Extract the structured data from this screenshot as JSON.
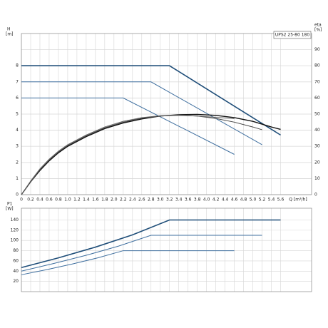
{
  "chart_data": [
    {
      "type": "line",
      "label": "UPS2 25-80 180",
      "ylabel": "H",
      "yunit": "[m]",
      "y2label": "eta",
      "y2unit": "[%]",
      "xlabel": "Q [m³/h]",
      "xlim": [
        0,
        6.27
      ],
      "ylim": [
        0,
        10
      ],
      "y2lim": [
        0,
        100
      ],
      "grid": true,
      "xticks": [
        0,
        0.2,
        0.4,
        0.6,
        0.8,
        {
          "value": 1,
          "label": "1.0"
        },
        1.2,
        1.4,
        1.6,
        1.8,
        {
          "value": 2,
          "label": "2.0"
        },
        2.2,
        2.4,
        2.6,
        2.8,
        {
          "value": 3,
          "label": "3.0"
        },
        3.2,
        3.4,
        3.6,
        3.8,
        {
          "value": 4,
          "label": "4.0"
        },
        4.2,
        4.4,
        4.6,
        4.8,
        {
          "value": 5,
          "label": "5.0"
        },
        5.2,
        5.4,
        5.6
      ],
      "yticks": [
        0,
        1,
        2,
        3,
        4,
        5,
        6,
        7,
        8
      ],
      "y2ticks": [
        0,
        10,
        20,
        30,
        40,
        50,
        60,
        70,
        80,
        90
      ],
      "series": [
        {
          "color": "#1f4e79",
          "width": 1.6,
          "x": [
            0,
            3.2,
            5.6
          ],
          "values": [
            8,
            8,
            3.7
          ]
        },
        {
          "color": "#3f6f9f",
          "width": 1,
          "x": [
            0,
            2.8,
            5.2
          ],
          "values": [
            7,
            7,
            3.1
          ]
        },
        {
          "color": "#3f6f9f",
          "width": 1,
          "x": [
            0,
            2.2,
            4.6
          ],
          "values": [
            6,
            6,
            2.5
          ]
        },
        {
          "color": "#111111",
          "width": 1.4,
          "axis": "y2",
          "x": [
            0,
            0.2,
            0.4,
            0.6,
            0.8,
            1,
            1.4,
            1.8,
            2.2,
            2.6,
            3,
            3.4,
            3.8,
            4.2,
            4.6,
            5,
            5.4,
            5.6
          ],
          "values": [
            0,
            8,
            15,
            21,
            26,
            30,
            36,
            41,
            44.5,
            47,
            48.8,
            49.6,
            49.8,
            49.2,
            47.8,
            45.5,
            42,
            40.5
          ]
        },
        {
          "color": "#444444",
          "width": 1,
          "axis": "y2",
          "x": [
            0,
            0.2,
            0.4,
            0.6,
            0.8,
            1,
            1.4,
            1.8,
            2.2,
            2.6,
            3,
            3.4,
            3.8,
            4.2,
            4.6,
            5,
            5.2
          ],
          "values": [
            0,
            8,
            15.5,
            21.5,
            26.5,
            30.5,
            36.5,
            41.5,
            45,
            47.5,
            48.8,
            49.3,
            48.8,
            47.3,
            45,
            42,
            40.3
          ]
        },
        {
          "color": "#666666",
          "width": 1,
          "axis": "y2",
          "x": [
            0,
            0.2,
            0.4,
            0.6,
            0.8,
            1,
            1.4,
            1.8,
            2.2,
            2.6,
            3,
            3.4,
            3.8,
            4.2,
            4.6
          ],
          "values": [
            0,
            8.5,
            16,
            22,
            27,
            31,
            37,
            42,
            45.5,
            47.8,
            49,
            49.2,
            48.8,
            48,
            47.2
          ]
        }
      ]
    },
    {
      "type": "line",
      "ylabel": "P1",
      "yunit": "[W]",
      "xlim": [
        0,
        6.27
      ],
      "ylim": [
        0,
        163
      ],
      "grid": true,
      "yticks": [
        20,
        40,
        60,
        80,
        100,
        120,
        140
      ],
      "series": [
        {
          "color": "#1f4e79",
          "width": 1.6,
          "x": [
            0,
            0.8,
            1.6,
            2.4,
            3.2,
            5.6
          ],
          "values": [
            47,
            66,
            87,
            111,
            140,
            140
          ]
        },
        {
          "color": "#3f6f9f",
          "width": 1,
          "x": [
            0,
            0.7,
            1.4,
            2.1,
            2.8,
            5.2
          ],
          "values": [
            40,
            55,
            71,
            89,
            110,
            110
          ]
        },
        {
          "color": "#3f6f9f",
          "width": 1,
          "x": [
            0,
            0.55,
            1.1,
            1.65,
            2.2,
            4.6
          ],
          "values": [
            33,
            43,
            54,
            66,
            80,
            80
          ]
        }
      ]
    }
  ]
}
